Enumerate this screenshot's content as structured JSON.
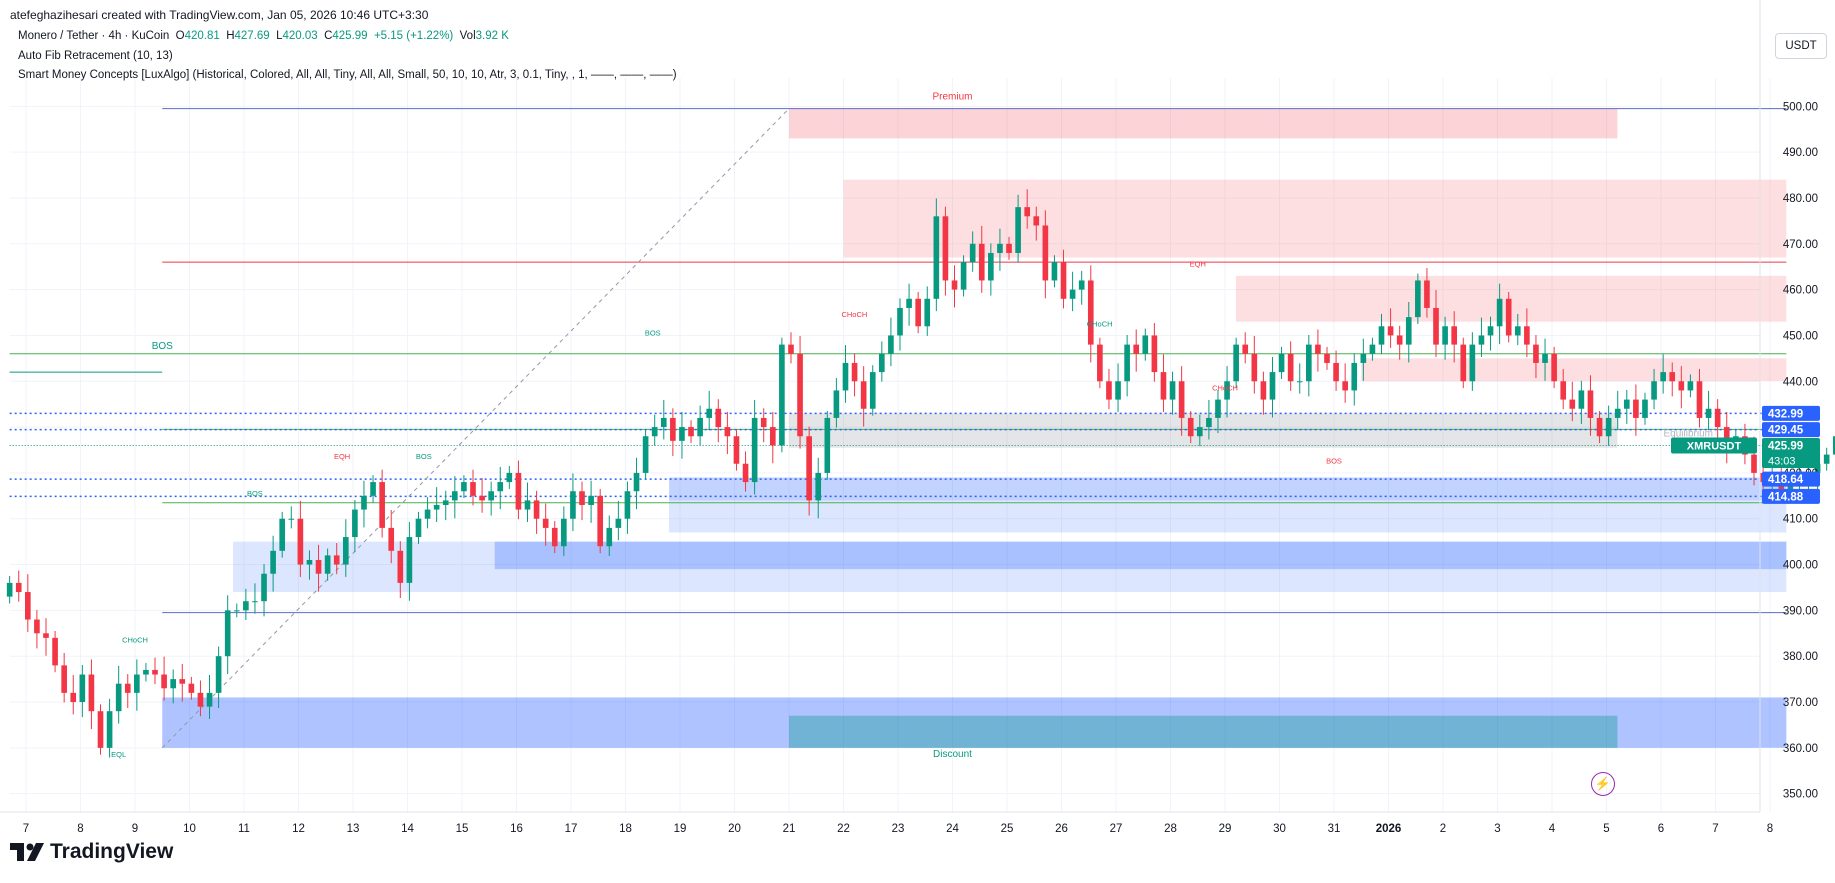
{
  "attribution": "atefeghazihesari created with TradingView.com, Jan 05, 2026 10:46 UTC+3:30",
  "legend": {
    "symbol": "Monero / Tether · 4h · KuCoin",
    "open_label": "O",
    "open": "420.81",
    "high_label": "H",
    "high": "427.69",
    "low_label": "L",
    "low": "420.03",
    "close_label": "C",
    "close": "425.99",
    "change": "+5.15 (+1.22%)",
    "vol_label": "Vol",
    "vol": "3.92 K",
    "indicator1": "Auto Fib Retracement (10, 13)",
    "indicator2": "Smart Money Concepts [LuxAlgo] (Historical, Colored, All, All, Tiny, All, All, Small, 50, 10, 10, Atr, 3, 0.1, Tiny, , 1, ——, ——, ——)"
  },
  "currency_button": "USDT",
  "brand": "TradingView",
  "colors": {
    "up": "#089981",
    "down": "#f23645",
    "axis_text": "#131722",
    "grid": "#f0f3fa"
  },
  "chart_data": {
    "type": "candlestick",
    "ylim": [
      346,
      504
    ],
    "y_ticks": [
      350,
      360,
      370,
      380,
      390,
      400,
      410,
      420,
      430,
      440,
      450,
      460,
      470,
      480,
      490,
      500
    ],
    "x_range": [
      6.7,
      8.3
    ],
    "x_ticks": [
      {
        "t": 7,
        "label": "7"
      },
      {
        "t": 8,
        "label": "8"
      },
      {
        "t": 9,
        "label": "9"
      },
      {
        "t": 10,
        "label": "10"
      },
      {
        "t": 11,
        "label": "11"
      },
      {
        "t": 12,
        "label": "12"
      },
      {
        "t": 13,
        "label": "13"
      },
      {
        "t": 14,
        "label": "14"
      },
      {
        "t": 15,
        "label": "15"
      },
      {
        "t": 16,
        "label": "16"
      },
      {
        "t": 17,
        "label": "17"
      },
      {
        "t": 18,
        "label": "18"
      },
      {
        "t": 19,
        "label": "19"
      },
      {
        "t": 20,
        "label": "20"
      },
      {
        "t": 21,
        "label": "21"
      },
      {
        "t": 22,
        "label": "22"
      },
      {
        "t": 23,
        "label": "23"
      },
      {
        "t": 24,
        "label": "24"
      },
      {
        "t": 25,
        "label": "25"
      },
      {
        "t": 26,
        "label": "26"
      },
      {
        "t": 27,
        "label": "27"
      },
      {
        "t": 28,
        "label": "28"
      },
      {
        "t": 29,
        "label": "29"
      },
      {
        "t": 30,
        "label": "30"
      },
      {
        "t": 31,
        "label": "31"
      },
      {
        "t": 32,
        "label": "2026",
        "bold": true
      },
      {
        "t": 33,
        "label": "2"
      },
      {
        "t": 34,
        "label": "3"
      },
      {
        "t": 35,
        "label": "4"
      },
      {
        "t": 36,
        "label": "5"
      },
      {
        "t": 37,
        "label": "6"
      },
      {
        "t": 38,
        "label": "7"
      },
      {
        "t": 39,
        "label": "8"
      }
    ],
    "candles_anchor": {
      "t": 6.7,
      "c": 393
    },
    "candles_step_days": 0.1667,
    "closes": [
      396,
      394,
      388,
      385,
      384,
      378,
      372,
      370,
      376,
      368,
      360,
      368,
      374,
      372,
      376,
      377,
      376,
      373,
      375,
      374,
      372,
      369,
      372,
      380,
      390,
      390,
      392,
      392,
      398,
      403,
      410,
      410,
      400,
      401,
      398,
      402,
      400,
      406,
      412,
      415,
      418,
      408,
      403,
      396,
      406,
      410,
      412,
      413,
      414,
      416,
      418,
      415,
      414,
      416,
      418,
      420,
      412,
      414,
      410,
      408,
      404,
      410,
      416,
      413,
      415,
      404,
      408,
      410,
      416,
      420,
      428,
      430,
      432,
      427,
      430,
      428,
      432,
      434,
      430,
      428,
      422,
      418,
      432,
      430,
      426,
      448,
      446,
      428,
      414,
      420,
      432,
      438,
      444,
      440,
      434,
      442,
      446,
      450,
      456,
      458,
      452,
      458,
      476,
      462,
      460,
      466,
      470,
      462,
      468,
      470,
      468,
      478,
      476,
      474,
      462,
      466,
      458,
      460,
      462,
      448,
      440,
      436,
      440,
      448,
      446,
      450,
      442,
      436,
      440,
      432,
      428,
      430,
      432,
      436,
      440,
      448,
      446,
      440,
      436,
      442,
      446,
      440,
      440,
      448,
      446,
      444,
      440,
      438,
      444,
      446,
      448,
      452,
      450,
      448,
      454,
      462,
      456,
      448,
      452,
      448,
      440,
      448,
      450,
      452,
      458,
      450,
      452,
      448,
      444,
      446,
      440,
      436,
      434,
      438,
      432,
      428,
      432,
      434,
      436,
      432,
      436,
      440,
      442,
      440,
      438,
      440,
      432,
      434,
      430,
      426,
      428,
      424,
      420,
      418,
      420,
      416,
      418,
      418,
      420,
      422,
      424,
      428,
      430,
      428,
      426,
      432,
      432,
      434,
      436,
      432,
      430,
      434,
      436,
      426,
      420,
      418,
      420,
      426
    ],
    "price_labels": [
      {
        "price": 432.99,
        "text": "432.99",
        "kind": "blue"
      },
      {
        "price": 429.45,
        "text": "429.45",
        "kind": "blue"
      },
      {
        "price": 425.99,
        "text": "425.99",
        "kind": "green",
        "symbol": "XMRUSDT",
        "countdown": "43:03"
      },
      {
        "price": 418.64,
        "text": "418.64",
        "kind": "blue"
      },
      {
        "price": 414.88,
        "text": "414.88",
        "kind": "blue"
      }
    ],
    "zones": [
      {
        "t0": 21.0,
        "t1": 36.2,
        "p0": 493,
        "p1": 499.5,
        "kind": "premium-block"
      },
      {
        "t0": 22.0,
        "t1": 39.3,
        "p0": 467,
        "p1": 484,
        "kind": "supply"
      },
      {
        "t0": 29.2,
        "t1": 39.3,
        "p0": 453,
        "p1": 463,
        "kind": "supply"
      },
      {
        "t0": 31.5,
        "t1": 39.3,
        "p0": 440,
        "p1": 445,
        "kind": "supply"
      },
      {
        "t0": 21.0,
        "t1": 36.2,
        "p0": 425.5,
        "p1": 433,
        "kind": "equilibrium"
      },
      {
        "t0": 18.8,
        "t1": 39.3,
        "p0": 414,
        "p1": 419,
        "kind": "demand"
      },
      {
        "t0": 18.8,
        "t1": 39.3,
        "p0": 407,
        "p1": 414,
        "kind": "demand-light"
      },
      {
        "t0": 10.8,
        "t1": 39.3,
        "p0": 394,
        "p1": 405,
        "kind": "demand-light"
      },
      {
        "t0": 15.6,
        "t1": 39.3,
        "p0": 399,
        "p1": 405,
        "kind": "demand"
      },
      {
        "t0": 9.5,
        "t1": 39.3,
        "p0": 360,
        "p1": 371,
        "kind": "discount"
      },
      {
        "t0": 21.0,
        "t1": 36.2,
        "p0": 360,
        "p1": 367,
        "kind": "discount-inner"
      }
    ],
    "lines": [
      {
        "t0": 9.5,
        "t1": 39.3,
        "p": 499.5,
        "kind": "fib-blue"
      },
      {
        "t0": 9.5,
        "t1": 39.3,
        "p": 466,
        "kind": "fib-red"
      },
      {
        "t0": 6.7,
        "t1": 39.3,
        "p": 446,
        "kind": "fib-green"
      },
      {
        "t0": 9.5,
        "t1": 39.3,
        "p": 429.5,
        "kind": "fib-green"
      },
      {
        "t0": 9.5,
        "t1": 39.3,
        "p": 413.5,
        "kind": "fib-green"
      },
      {
        "t0": 9.5,
        "t1": 39.3,
        "p": 389.5,
        "kind": "fib-blue"
      },
      {
        "t0": 6.7,
        "t1": 39.3,
        "p": 432.99,
        "kind": "dotted-blue"
      },
      {
        "t0": 6.7,
        "t1": 39.3,
        "p": 429.45,
        "kind": "dotted-blue"
      },
      {
        "t0": 6.7,
        "t1": 39.3,
        "p": 418.64,
        "kind": "dotted-blue"
      },
      {
        "t0": 6.7,
        "t1": 39.3,
        "p": 414.88,
        "kind": "dotted-blue"
      },
      {
        "t0": 6.7,
        "t1": 39.3,
        "p": 425.99,
        "kind": "dotted-green"
      },
      {
        "t0": 6.7,
        "t1": 9.5,
        "p": 442,
        "kind": "solid-green-thin"
      }
    ],
    "diagonal": {
      "t0": 9.5,
      "p0": 360,
      "t1": 21.0,
      "p1": 499.5
    },
    "structure_labels": [
      {
        "t": 9.0,
        "p": 383,
        "text": "CHoCH",
        "color": "#089981"
      },
      {
        "t": 9.5,
        "p": 447,
        "text": "BOS",
        "color": "#089981",
        "big": true
      },
      {
        "t": 11.2,
        "p": 415,
        "text": "BOS",
        "color": "#089981"
      },
      {
        "t": 12.8,
        "p": 423,
        "text": "EQH",
        "color": "#f23645"
      },
      {
        "t": 14.3,
        "p": 423,
        "text": "BOS",
        "color": "#089981"
      },
      {
        "t": 18.5,
        "p": 450,
        "text": "BOS",
        "color": "#089981"
      },
      {
        "t": 22.2,
        "p": 454,
        "text": "CHoCH",
        "color": "#f23645"
      },
      {
        "t": 26.7,
        "p": 452,
        "text": "CHoCH",
        "color": "#089981"
      },
      {
        "t": 28.5,
        "p": 465,
        "text": "EQH",
        "color": "#f23645"
      },
      {
        "t": 29.0,
        "p": 438,
        "text": "CHoCH",
        "color": "#f23645"
      },
      {
        "t": 31.0,
        "p": 422,
        "text": "BOS",
        "color": "#f23645"
      },
      {
        "t": 8.7,
        "p": 358,
        "text": "EQL",
        "color": "#089981"
      },
      {
        "t": 24.0,
        "p": 501.5,
        "text": "Premium",
        "color": "#f23645",
        "big": true
      },
      {
        "t": 24.0,
        "p": 358,
        "text": "Discount",
        "color": "#089981",
        "big": true
      },
      {
        "t": 37.5,
        "p": 428,
        "text": "Equilibrium",
        "color": "#b2b5be",
        "big": true
      }
    ]
  }
}
